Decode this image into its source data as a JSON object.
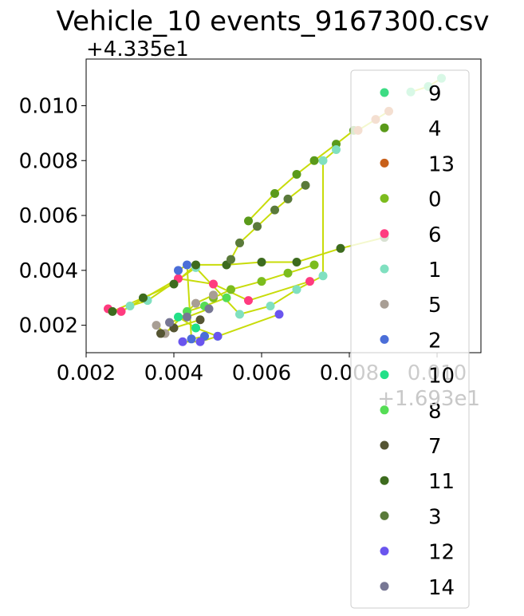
{
  "chart_data": {
    "type": "scatter",
    "title": "Vehicle_10 events_9167300.csv",
    "xlabel": "",
    "ylabel": "",
    "x_offset_text": "+1.693e1",
    "y_offset_text": "+4.335e1",
    "x_offset": 16.93,
    "y_offset": 43.35,
    "xlim": [
      0.002,
      0.011
    ],
    "ylim": [
      0.001,
      0.0117
    ],
    "x_ticks": [
      0.002,
      0.004,
      0.006,
      0.008,
      0.01
    ],
    "x_tick_labels": [
      "0.002",
      "0.004",
      "0.006",
      "0.008",
      "0.010"
    ],
    "y_ticks": [
      0.002,
      0.004,
      0.006,
      0.008,
      0.01
    ],
    "y_tick_labels": [
      "0.002",
      "0.004",
      "0.006",
      "0.008",
      "0.010"
    ],
    "grid": false,
    "legend_placement": "right, overflowing below plot",
    "trajectory_line_color": "#c8dc0a",
    "series": [
      {
        "name": "9",
        "color": "#3ddc84",
        "points": [
          [
            0.0094,
            0.0105
          ],
          [
            0.0098,
            0.0107
          ],
          [
            0.0101,
            0.011
          ]
        ]
      },
      {
        "name": "4",
        "color": "#5a9a1a",
        "points": [
          [
            0.0057,
            0.0058
          ],
          [
            0.0063,
            0.0068
          ],
          [
            0.0068,
            0.0075
          ],
          [
            0.0072,
            0.008
          ],
          [
            0.0077,
            0.0086
          ],
          [
            0.0081,
            0.0091
          ]
        ]
      },
      {
        "name": "13",
        "color": "#c8601a",
        "points": [
          [
            0.0082,
            0.0091
          ],
          [
            0.0086,
            0.0095
          ],
          [
            0.0089,
            0.0098
          ]
        ]
      },
      {
        "name": "0",
        "color": "#7cbc1e",
        "points": [
          [
            0.0049,
            0.003
          ],
          [
            0.0053,
            0.0033
          ],
          [
            0.006,
            0.0036
          ],
          [
            0.0066,
            0.0039
          ],
          [
            0.0072,
            0.0042
          ]
        ]
      },
      {
        "name": "6",
        "color": "#ff3b7f",
        "points": [
          [
            0.0025,
            0.0026
          ],
          [
            0.0028,
            0.0025
          ],
          [
            0.0041,
            0.0037
          ],
          [
            0.0049,
            0.0035
          ],
          [
            0.0057,
            0.0029
          ],
          [
            0.0071,
            0.0036
          ]
        ]
      },
      {
        "name": "1",
        "color": "#80e0c0",
        "points": [
          [
            0.003,
            0.0027
          ],
          [
            0.0034,
            0.0029
          ],
          [
            0.0045,
            0.0041
          ],
          [
            0.0055,
            0.0024
          ],
          [
            0.0062,
            0.0027
          ],
          [
            0.0068,
            0.0033
          ],
          [
            0.0074,
            0.0038
          ],
          [
            0.0074,
            0.008
          ],
          [
            0.0077,
            0.0084
          ]
        ]
      },
      {
        "name": "5",
        "color": "#a89e94",
        "points": [
          [
            0.0036,
            0.002
          ],
          [
            0.0038,
            0.0017
          ],
          [
            0.0045,
            0.0028
          ],
          [
            0.0049,
            0.0031
          ]
        ]
      },
      {
        "name": "2",
        "color": "#4b6ed8",
        "points": [
          [
            0.0041,
            0.004
          ],
          [
            0.0043,
            0.0042
          ],
          [
            0.0044,
            0.0015
          ],
          [
            0.0047,
            0.0016
          ]
        ]
      },
      {
        "name": "10",
        "color": "#22e088",
        "points": [
          [
            0.0041,
            0.0023
          ],
          [
            0.0045,
            0.0019
          ],
          [
            0.005,
            0.0016
          ]
        ]
      },
      {
        "name": "8",
        "color": "#55dd55",
        "points": [
          [
            0.0043,
            0.0025
          ],
          [
            0.0047,
            0.0027
          ],
          [
            0.0052,
            0.003
          ]
        ]
      },
      {
        "name": "7",
        "color": "#555533",
        "points": [
          [
            0.0037,
            0.0017
          ],
          [
            0.004,
            0.0019
          ],
          [
            0.0046,
            0.0022
          ]
        ]
      },
      {
        "name": "11",
        "color": "#3d6b1e",
        "points": [
          [
            0.0026,
            0.0025
          ],
          [
            0.0033,
            0.003
          ],
          [
            0.004,
            0.0035
          ],
          [
            0.0045,
            0.0042
          ],
          [
            0.0052,
            0.0042
          ],
          [
            0.006,
            0.0043
          ],
          [
            0.0068,
            0.0043
          ],
          [
            0.0078,
            0.0048
          ],
          [
            0.0088,
            0.0052
          ]
        ]
      },
      {
        "name": "3",
        "color": "#5a7a3a",
        "points": [
          [
            0.0053,
            0.0044
          ],
          [
            0.0055,
            0.005
          ],
          [
            0.0059,
            0.0056
          ],
          [
            0.0063,
            0.0062
          ],
          [
            0.0066,
            0.0066
          ],
          [
            0.007,
            0.0071
          ]
        ]
      },
      {
        "name": "12",
        "color": "#6a55ee",
        "points": [
          [
            0.0042,
            0.0014
          ],
          [
            0.0046,
            0.0014
          ],
          [
            0.005,
            0.0016
          ],
          [
            0.0064,
            0.0024
          ]
        ]
      },
      {
        "name": "14",
        "color": "#777794",
        "points": [
          [
            0.0039,
            0.0021
          ],
          [
            0.0043,
            0.0023
          ],
          [
            0.0048,
            0.0026
          ]
        ]
      }
    ]
  }
}
